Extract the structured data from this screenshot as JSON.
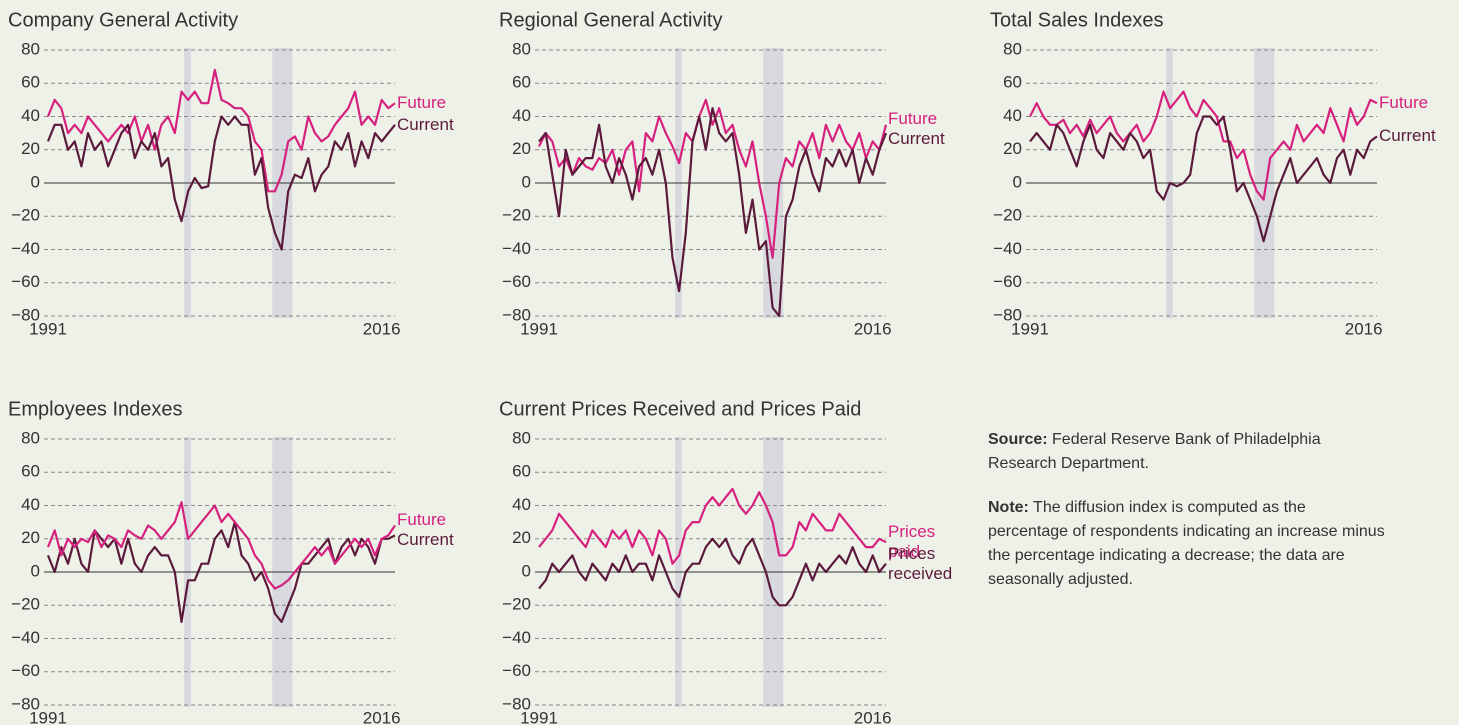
{
  "chart_data": [
    {
      "type": "line",
      "title": "Company General Activity",
      "x": [
        1991,
        1991.5,
        1992,
        1992.5,
        1993,
        1993.5,
        1994,
        1994.5,
        1995,
        1995.5,
        1996,
        1996.5,
        1997,
        1997.5,
        1998,
        1998.5,
        1999,
        1999.5,
        2000,
        2000.5,
        2001,
        2001.5,
        2002,
        2002.5,
        2003,
        2003.5,
        2004,
        2004.5,
        2005,
        2005.5,
        2006,
        2006.5,
        2007,
        2007.5,
        2008,
        2008.5,
        2009,
        2009.5,
        2010,
        2010.5,
        2011,
        2011.5,
        2012,
        2012.5,
        2013,
        2013.5,
        2014,
        2014.5,
        2015,
        2015.5,
        2016,
        2016.5,
        2017
      ],
      "series": [
        {
          "name": "Future",
          "color": "#d6217f",
          "values": [
            40,
            50,
            45,
            30,
            35,
            30,
            40,
            35,
            30,
            25,
            30,
            35,
            30,
            40,
            25,
            35,
            20,
            35,
            40,
            30,
            55,
            50,
            55,
            48,
            48,
            68,
            50,
            48,
            45,
            45,
            40,
            25,
            20,
            -5,
            -5,
            5,
            25,
            28,
            20,
            40,
            30,
            25,
            28,
            35,
            40,
            45,
            55,
            35,
            40,
            35,
            50,
            45,
            48
          ]
        },
        {
          "name": "Current",
          "color": "#5b1a3b",
          "values": [
            25,
            35,
            35,
            20,
            25,
            10,
            30,
            20,
            25,
            10,
            20,
            30,
            35,
            15,
            25,
            20,
            30,
            10,
            15,
            -10,
            -23,
            -5,
            3,
            -3,
            -2,
            25,
            40,
            35,
            40,
            35,
            35,
            5,
            15,
            -15,
            -30,
            -40,
            -5,
            5,
            3,
            15,
            -5,
            5,
            10,
            25,
            20,
            30,
            10,
            25,
            15,
            30,
            25,
            30,
            35
          ]
        }
      ],
      "xlim": [
        1991,
        2017
      ],
      "ylim": [
        -80,
        80
      ],
      "xticks": [
        1991,
        2016
      ],
      "yticks": [
        {
          "value": -80,
          "label": "−80"
        },
        {
          "value": -60,
          "label": "−60"
        },
        {
          "value": -40,
          "label": "−40"
        },
        {
          "value": -20,
          "label": "−20"
        },
        0,
        20,
        40,
        60,
        80
      ],
      "grid": true,
      "shaded_periods": [
        [
          2001.2,
          2001.7
        ],
        [
          2007.8,
          2009.3
        ]
      ]
    },
    {
      "type": "line",
      "title": "Regional General Activity",
      "x": [
        1991,
        1991.5,
        1992,
        1992.5,
        1993,
        1993.5,
        1994,
        1994.5,
        1995,
        1995.5,
        1996,
        1996.5,
        1997,
        1997.5,
        1998,
        1998.5,
        1999,
        1999.5,
        2000,
        2000.5,
        2001,
        2001.5,
        2002,
        2002.5,
        2003,
        2003.5,
        2004,
        2004.5,
        2005,
        2005.5,
        2006,
        2006.5,
        2007,
        2007.5,
        2008,
        2008.5,
        2009,
        2009.5,
        2010,
        2010.5,
        2011,
        2011.5,
        2012,
        2012.5,
        2013,
        2013.5,
        2014,
        2014.5,
        2015,
        2015.5,
        2016,
        2016.5,
        2017
      ],
      "series": [
        {
          "name": "Future",
          "color": "#d6217f",
          "values": [
            22,
            30,
            25,
            10,
            15,
            5,
            15,
            10,
            8,
            15,
            12,
            20,
            5,
            20,
            25,
            -5,
            30,
            25,
            40,
            30,
            22,
            12,
            30,
            25,
            40,
            50,
            35,
            45,
            30,
            35,
            20,
            10,
            25,
            0,
            -20,
            -45,
            0,
            15,
            10,
            25,
            20,
            30,
            15,
            35,
            25,
            35,
            25,
            20,
            30,
            15,
            25,
            20,
            35
          ]
        },
        {
          "name": "Current",
          "color": "#5b1a3b",
          "values": [
            25,
            30,
            5,
            -20,
            20,
            5,
            10,
            15,
            15,
            35,
            10,
            0,
            15,
            5,
            -10,
            10,
            15,
            5,
            20,
            0,
            -45,
            -65,
            -30,
            25,
            40,
            20,
            45,
            30,
            25,
            30,
            5,
            -30,
            -10,
            -40,
            -35,
            -75,
            -80,
            -20,
            -10,
            10,
            20,
            5,
            -5,
            15,
            10,
            20,
            10,
            20,
            0,
            15,
            5,
            20,
            30
          ]
        }
      ],
      "xlim": [
        1991,
        2017
      ],
      "ylim": [
        -80,
        80
      ],
      "xticks": [
        1991,
        2016
      ],
      "yticks": [
        {
          "value": -80,
          "label": "−80"
        },
        {
          "value": -60,
          "label": "−60"
        },
        {
          "value": -40,
          "label": "−40"
        },
        {
          "value": -20,
          "label": "−20"
        },
        0,
        20,
        40,
        60,
        80
      ],
      "grid": true,
      "shaded_periods": [
        [
          2001.2,
          2001.7
        ],
        [
          2007.8,
          2009.3
        ]
      ]
    },
    {
      "type": "line",
      "title": "Total Sales Indexes",
      "x": [
        1991,
        1991.5,
        1992,
        1992.5,
        1993,
        1993.5,
        1994,
        1994.5,
        1995,
        1995.5,
        1996,
        1996.5,
        1997,
        1997.5,
        1998,
        1998.5,
        1999,
        1999.5,
        2000,
        2000.5,
        2001,
        2001.5,
        2002,
        2002.5,
        2003,
        2003.5,
        2004,
        2004.5,
        2005,
        2005.5,
        2006,
        2006.5,
        2007,
        2007.5,
        2008,
        2008.5,
        2009,
        2009.5,
        2010,
        2010.5,
        2011,
        2011.5,
        2012,
        2012.5,
        2013,
        2013.5,
        2014,
        2014.5,
        2015,
        2015.5,
        2016,
        2016.5,
        2017
      ],
      "series": [
        {
          "name": "Future",
          "color": "#d6217f",
          "values": [
            40,
            48,
            40,
            35,
            35,
            38,
            30,
            35,
            28,
            38,
            30,
            35,
            40,
            30,
            25,
            30,
            35,
            25,
            30,
            40,
            55,
            45,
            50,
            55,
            45,
            40,
            50,
            45,
            40,
            25,
            25,
            15,
            20,
            5,
            -5,
            -10,
            15,
            20,
            25,
            20,
            35,
            25,
            30,
            35,
            30,
            45,
            35,
            25,
            45,
            35,
            40,
            50,
            48
          ]
        },
        {
          "name": "Current",
          "color": "#5b1a3b",
          "values": [
            25,
            30,
            25,
            20,
            35,
            30,
            20,
            10,
            25,
            35,
            20,
            15,
            30,
            25,
            20,
            30,
            25,
            15,
            20,
            -5,
            -10,
            0,
            -2,
            0,
            5,
            30,
            40,
            40,
            35,
            40,
            20,
            -5,
            0,
            -10,
            -20,
            -35,
            -20,
            -5,
            5,
            15,
            0,
            5,
            10,
            15,
            5,
            0,
            15,
            20,
            5,
            20,
            15,
            25,
            28
          ]
        }
      ],
      "xlim": [
        1991,
        2017
      ],
      "ylim": [
        -80,
        80
      ],
      "xticks": [
        1991,
        2016
      ],
      "yticks": [
        {
          "value": -80,
          "label": "−80"
        },
        {
          "value": -60,
          "label": "−60"
        },
        {
          "value": -40,
          "label": "−40"
        },
        {
          "value": -20,
          "label": "−20"
        },
        0,
        20,
        40,
        60,
        80
      ],
      "grid": true,
      "shaded_periods": [
        [
          2001.2,
          2001.7
        ],
        [
          2007.8,
          2009.3
        ]
      ]
    },
    {
      "type": "line",
      "title": "Employees Indexes",
      "x": [
        1991,
        1991.5,
        1992,
        1992.5,
        1993,
        1993.5,
        1994,
        1994.5,
        1995,
        1995.5,
        1996,
        1996.5,
        1997,
        1997.5,
        1998,
        1998.5,
        1999,
        1999.5,
        2000,
        2000.5,
        2001,
        2001.5,
        2002,
        2002.5,
        2003,
        2003.5,
        2004,
        2004.5,
        2005,
        2005.5,
        2006,
        2006.5,
        2007,
        2007.5,
        2008,
        2008.5,
        2009,
        2009.5,
        2010,
        2010.5,
        2011,
        2011.5,
        2012,
        2012.5,
        2013,
        2013.5,
        2014,
        2014.5,
        2015,
        2015.5,
        2016,
        2016.5,
        2017
      ],
      "series": [
        {
          "name": "Current",
          "color": "#5b1a3b",
          "values": [
            10,
            0,
            15,
            5,
            20,
            5,
            0,
            25,
            20,
            15,
            20,
            5,
            20,
            5,
            0,
            10,
            15,
            10,
            10,
            0,
            -30,
            -5,
            -5,
            5,
            5,
            20,
            25,
            15,
            30,
            10,
            5,
            -5,
            0,
            -10,
            -25,
            -30,
            -20,
            -10,
            5,
            5,
            10,
            15,
            20,
            5,
            15,
            20,
            10,
            20,
            15,
            5,
            20,
            20,
            22
          ]
        },
        {
          "name": "Future",
          "color": "#d6217f",
          "values": [
            15,
            25,
            10,
            20,
            15,
            20,
            18,
            25,
            15,
            22,
            20,
            15,
            25,
            22,
            20,
            28,
            25,
            20,
            25,
            30,
            42,
            20,
            25,
            30,
            35,
            40,
            30,
            35,
            30,
            25,
            20,
            10,
            5,
            -5,
            -10,
            -8,
            -5,
            0,
            5,
            10,
            15,
            10,
            15,
            5,
            10,
            15,
            20,
            15,
            20,
            10,
            20,
            22,
            28
          ]
        }
      ],
      "xlim": [
        1991,
        2017
      ],
      "ylim": [
        -80,
        80
      ],
      "xticks": [
        1991,
        2016
      ],
      "yticks": [
        {
          "value": -80,
          "label": "−80"
        },
        {
          "value": -60,
          "label": "−60"
        },
        {
          "value": -40,
          "label": "−40"
        },
        {
          "value": -20,
          "label": "−20"
        },
        0,
        20,
        40,
        60,
        80
      ],
      "grid": true,
      "shaded_periods": [
        [
          2001.2,
          2001.7
        ],
        [
          2007.8,
          2009.3
        ]
      ]
    },
    {
      "type": "line",
      "title": "Current Prices Received and Prices Paid",
      "x": [
        1991,
        1991.5,
        1992,
        1992.5,
        1993,
        1993.5,
        1994,
        1994.5,
        1995,
        1995.5,
        1996,
        1996.5,
        1997,
        1997.5,
        1998,
        1998.5,
        1999,
        1999.5,
        2000,
        2000.5,
        2001,
        2001.5,
        2002,
        2002.5,
        2003,
        2003.5,
        2004,
        2004.5,
        2005,
        2005.5,
        2006,
        2006.5,
        2007,
        2007.5,
        2008,
        2008.5,
        2009,
        2009.5,
        2010,
        2010.5,
        2011,
        2011.5,
        2012,
        2012.5,
        2013,
        2013.5,
        2014,
        2014.5,
        2015,
        2015.5,
        2016,
        2016.5,
        2017
      ],
      "series": [
        {
          "name": "Prices paid",
          "color": "#d6217f",
          "values": [
            15,
            20,
            25,
            35,
            30,
            25,
            20,
            15,
            25,
            20,
            15,
            25,
            20,
            25,
            15,
            25,
            20,
            10,
            25,
            20,
            5,
            10,
            25,
            30,
            30,
            40,
            45,
            40,
            45,
            50,
            40,
            35,
            40,
            48,
            40,
            30,
            10,
            10,
            15,
            30,
            25,
            35,
            30,
            25,
            25,
            35,
            30,
            25,
            20,
            15,
            15,
            20,
            18
          ]
        },
        {
          "name": "Prices received",
          "color": "#5b1a3b",
          "values": [
            -10,
            -5,
            5,
            0,
            5,
            10,
            0,
            -5,
            5,
            0,
            -5,
            5,
            0,
            10,
            0,
            5,
            5,
            -5,
            10,
            0,
            -10,
            -15,
            0,
            5,
            5,
            15,
            20,
            15,
            20,
            10,
            5,
            15,
            20,
            10,
            0,
            -15,
            -20,
            -20,
            -15,
            -5,
            5,
            -5,
            5,
            0,
            5,
            10,
            5,
            15,
            5,
            0,
            10,
            0,
            5
          ]
        }
      ],
      "xlim": [
        1991,
        2017
      ],
      "ylim": [
        -80,
        80
      ],
      "xticks": [
        1991,
        2016
      ],
      "yticks": [
        {
          "value": -80,
          "label": "−80"
        },
        {
          "value": -60,
          "label": "−60"
        },
        {
          "value": -40,
          "label": "−40"
        },
        {
          "value": -20,
          "label": "−20"
        },
        0,
        20,
        40,
        60,
        80
      ],
      "grid": true,
      "shaded_periods": [
        [
          2001.2,
          2001.7
        ],
        [
          2007.8,
          2009.3
        ]
      ]
    }
  ],
  "source": {
    "label": "Source:",
    "text": "Federal Reserve Bank of Philadelphia Research Department."
  },
  "note": {
    "label": "Note:",
    "text": "The diffusion index is computed as the percentage of respondents indicating an increase minus the percentage indicating a decrease; the data are seasonally adjusted."
  }
}
